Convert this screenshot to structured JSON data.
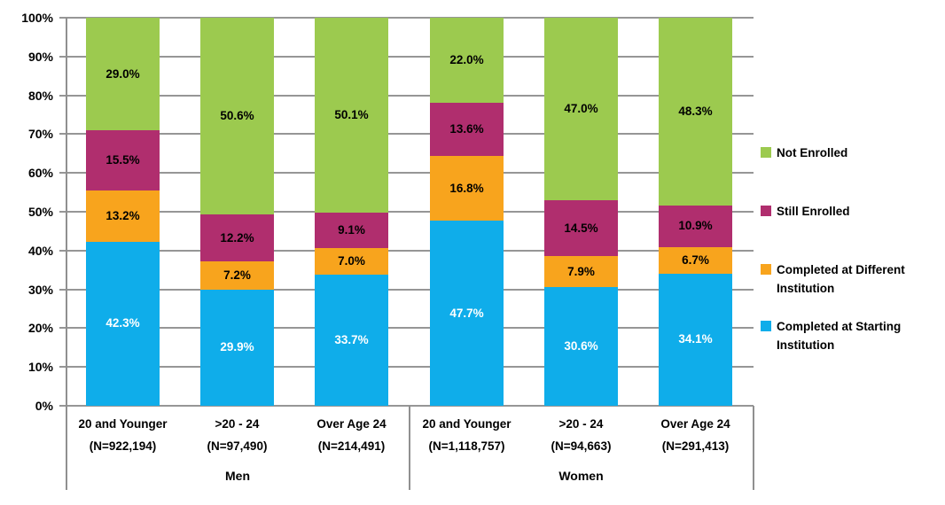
{
  "chart_data": {
    "type": "bar",
    "subtype": "100-percent-stacked-column",
    "title": "",
    "categories": [
      {
        "label": "20 and Younger",
        "n": "(N=922,194)",
        "group": "Men"
      },
      {
        "label": ">20 - 24",
        "n": "(N=97,490)",
        "group": "Men"
      },
      {
        "label": "Over Age 24",
        "n": "(N=214,491)",
        "group": "Men"
      },
      {
        "label": "20 and Younger",
        "n": "(N=1,118,757)",
        "group": "Women"
      },
      {
        "label": ">20 - 24",
        "n": "(N=94,663)",
        "group": "Women"
      },
      {
        "label": "Over Age 24",
        "n": "(N=291,413)",
        "group": "Women"
      }
    ],
    "groups": [
      {
        "label": "Men"
      },
      {
        "label": "Women"
      }
    ],
    "series": [
      {
        "name": "Completed at Starting Institution",
        "color": "#0FADEA",
        "label_color": "#FFFFFF",
        "values": [
          42.3,
          29.9,
          33.7,
          47.7,
          30.6,
          34.1
        ]
      },
      {
        "name": "Completed at Different Institution",
        "color": "#F8A41D",
        "label_color": "#000000",
        "values": [
          13.2,
          7.2,
          7.0,
          16.8,
          7.9,
          6.7
        ]
      },
      {
        "name": "Still Enrolled",
        "color": "#B02E6E",
        "label_color": "#000000",
        "values": [
          15.5,
          12.2,
          9.1,
          13.6,
          14.5,
          10.9
        ]
      },
      {
        "name": "Not Enrolled",
        "color": "#9CCA4F",
        "label_color": "#000000",
        "values": [
          29.0,
          50.6,
          50.1,
          22.0,
          47.0,
          48.3
        ]
      }
    ],
    "legend": {
      "position": "right",
      "order": [
        "Not Enrolled",
        "Still Enrolled",
        "Completed at Different Institution",
        "Completed at Starting Institution"
      ]
    },
    "y_axis": {
      "min": 0,
      "max": 100,
      "step": 10,
      "tick_labels": [
        "0%",
        "10%",
        "20%",
        "30%",
        "40%",
        "50%",
        "60%",
        "70%",
        "80%",
        "90%",
        "100%"
      ],
      "grid": true
    },
    "value_label_format": "one-decimal-percent",
    "colors": {
      "grid": "#969696",
      "axis": "#909090",
      "background": "#FFFFFF",
      "text": "#000000"
    }
  }
}
